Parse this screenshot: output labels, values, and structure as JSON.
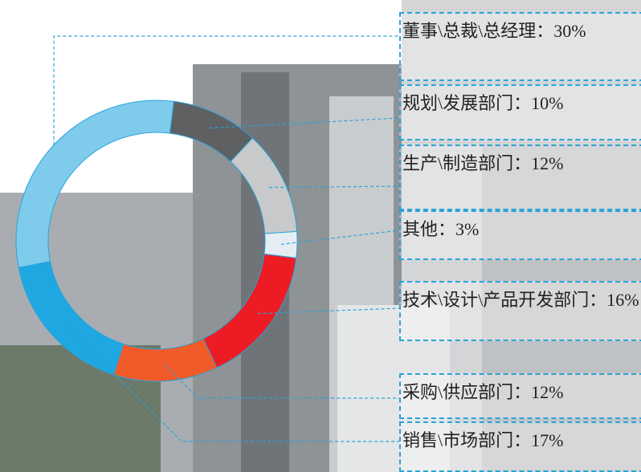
{
  "chart_data": {
    "type": "donut",
    "categories": [
      "规划\\发展部门：",
      "生产\\制造部门：",
      "其他：",
      "技术\\设计\\产品开发部门：",
      "采购\\供应部门：",
      "销售\\市场部门：",
      "董事\\总裁\\总经理："
    ],
    "values": [
      10,
      12,
      3,
      16,
      12,
      17,
      30
    ],
    "value_labels": [
      "10%",
      "12%",
      "3%",
      "16%",
      "12%",
      "17%",
      "30%"
    ],
    "colors": [
      "#5f6062",
      "#c8c9ca",
      "#e6eef3",
      "#ed1c24",
      "#f15a29",
      "#1fa7e1",
      "#7ecbec"
    ]
  }
}
